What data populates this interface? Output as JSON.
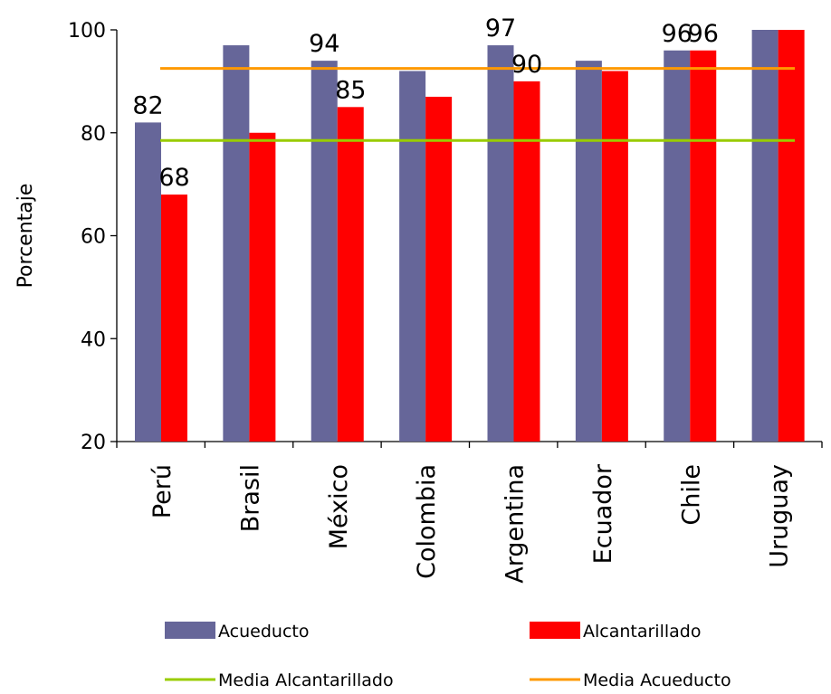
{
  "chart_data": {
    "type": "bar",
    "ylabel": "Porcentaje",
    "ylim": [
      20,
      100
    ],
    "yticks": [
      20,
      40,
      60,
      80,
      100
    ],
    "categories": [
      "Perú",
      "Brasil",
      "México",
      "Colombia",
      "Argentina",
      "Ecuador",
      "Chile",
      "Uruguay"
    ],
    "series": [
      {
        "name": "Acueducto",
        "color": "#666699",
        "values": [
          82,
          97,
          94,
          92,
          97,
          94,
          96,
          100
        ]
      },
      {
        "name": "Alcantarillado",
        "color": "#ff0000",
        "values": [
          68,
          80,
          85,
          87,
          90,
          92,
          96,
          100
        ]
      }
    ],
    "data_labels": [
      {
        "series": 0,
        "category": 0,
        "text": "82"
      },
      {
        "series": 1,
        "category": 0,
        "text": "68"
      },
      {
        "series": 0,
        "category": 2,
        "text": "94"
      },
      {
        "series": 1,
        "category": 2,
        "text": "85"
      },
      {
        "series": 0,
        "category": 4,
        "text": "97"
      },
      {
        "series": 1,
        "category": 4,
        "text": "90"
      },
      {
        "series": 0,
        "category": 6,
        "text": "96"
      },
      {
        "series": 1,
        "category": 6,
        "text": "96"
      }
    ],
    "reference_lines": [
      {
        "name": "Media Alcantarillado",
        "color": "#99cc00",
        "value": 78.5
      },
      {
        "name": "Media Acueducto",
        "color": "#ff9900",
        "value": 92.5
      }
    ],
    "grid": false,
    "legend_position": "bottom"
  }
}
